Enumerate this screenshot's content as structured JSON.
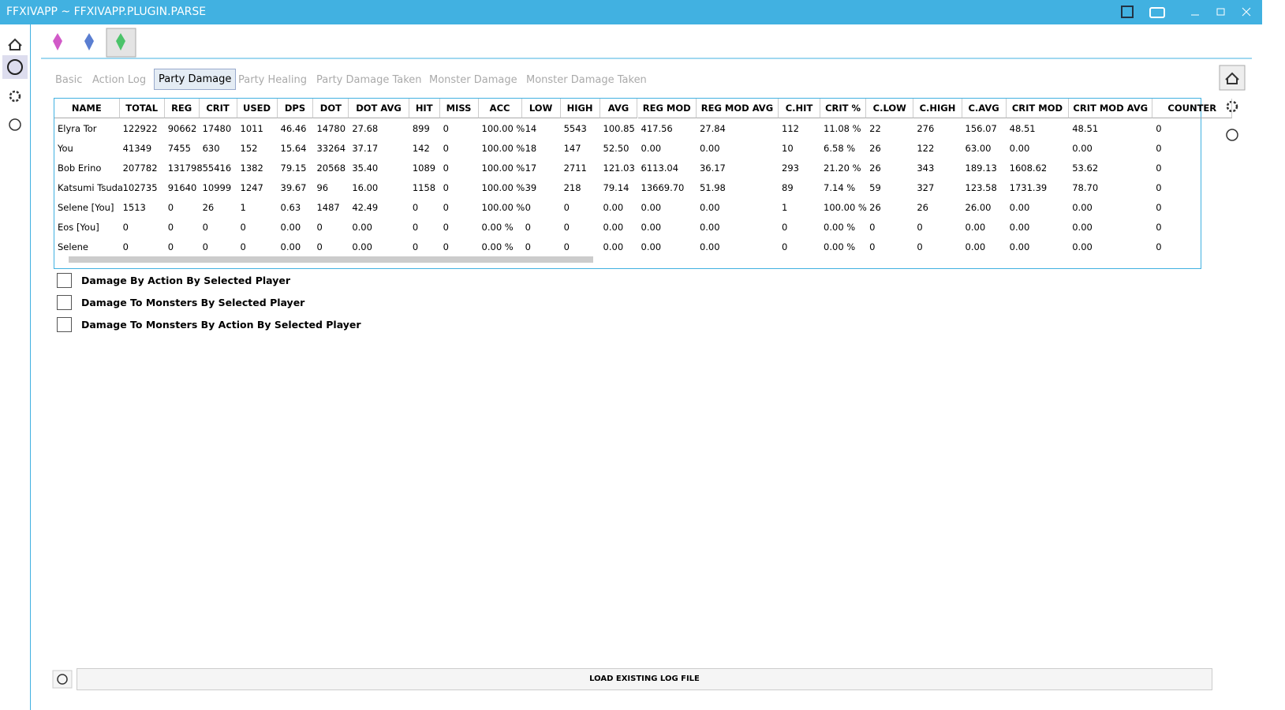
{
  "window": {
    "title": "FFXIVAPP ~ FFXIVAPP.PLUGIN.PARSE"
  },
  "tabs": [
    "Basic",
    "Action Log",
    "Party Damage",
    "Party Healing",
    "Party Damage Taken",
    "Monster Damage",
    "Monster Damage Taken"
  ],
  "table": {
    "headers": [
      "NAME",
      "TOTAL",
      "REG",
      "CRIT",
      "USED",
      "DPS",
      "DOT",
      "DOT AVG",
      "HIT",
      "MISS",
      "ACC",
      "LOW",
      "HIGH",
      "AVG",
      "REG MOD",
      "REG MOD AVG",
      "C.HIT",
      "CRIT %",
      "C.LOW",
      "C.HIGH",
      "C.AVG",
      "CRIT MOD",
      "CRIT MOD AVG",
      "COUNTER"
    ],
    "rows": [
      [
        "Elyra Tor",
        "122922",
        "90662",
        "17480",
        "1011",
        "46.46",
        "14780",
        "27.68",
        "899",
        "0",
        "100.00 %",
        "14",
        "5543",
        "100.85",
        "417.56",
        "27.84",
        "112",
        "11.08 %",
        "22",
        "276",
        "156.07",
        "48.51",
        "48.51",
        "0"
      ],
      [
        "You",
        "41349",
        "7455",
        "630",
        "152",
        "15.64",
        "33264",
        "37.17",
        "142",
        "0",
        "100.00 %",
        "18",
        "147",
        "52.50",
        "0.00",
        "0.00",
        "10",
        "6.58 %",
        "26",
        "122",
        "63.00",
        "0.00",
        "0.00",
        "0"
      ],
      [
        "Bob Erino",
        "207782",
        "131798",
        "55416",
        "1382",
        "79.15",
        "20568",
        "35.40",
        "1089",
        "0",
        "100.00 %",
        "17",
        "2711",
        "121.03",
        "6113.04",
        "36.17",
        "293",
        "21.20 %",
        "26",
        "343",
        "189.13",
        "1608.62",
        "53.62",
        "0"
      ],
      [
        "Katsumi Tsuda",
        "102735",
        "91640",
        "10999",
        "1247",
        "39.67",
        "96",
        "16.00",
        "1158",
        "0",
        "100.00 %",
        "39",
        "218",
        "79.14",
        "13669.70",
        "51.98",
        "89",
        "7.14 %",
        "59",
        "327",
        "123.58",
        "1731.39",
        "78.70",
        "0"
      ],
      [
        "Selene [You]",
        "1513",
        "0",
        "26",
        "1",
        "0.63",
        "1487",
        "42.49",
        "0",
        "0",
        "100.00 %",
        "0",
        "0",
        "0.00",
        "0.00",
        "0.00",
        "1",
        "100.00 %",
        "26",
        "26",
        "26.00",
        "0.00",
        "0.00",
        "0"
      ],
      [
        "Eos [You]",
        "0",
        "0",
        "0",
        "0",
        "0.00",
        "0",
        "0.00",
        "0",
        "0",
        "0.00 %",
        "0",
        "0",
        "0.00",
        "0.00",
        "0.00",
        "0",
        "0.00 %",
        "0",
        "0",
        "0.00",
        "0.00",
        "0.00",
        "0"
      ],
      [
        "Selene",
        "0",
        "0",
        "0",
        "0",
        "0.00",
        "0",
        "0.00",
        "0",
        "0",
        "0.00 %",
        "0",
        "0",
        "0.00",
        "0.00",
        "0.00",
        "0",
        "0.00 %",
        "0",
        "0",
        "0.00",
        "0.00",
        "0.00",
        "0"
      ]
    ]
  },
  "options": [
    "Damage By Action By Selected Player",
    "Damage To Monsters By Selected Player",
    "Damage To Monsters By Action By Selected Player"
  ],
  "footer": {
    "button": "LOAD EXISTING LOG FILE"
  }
}
